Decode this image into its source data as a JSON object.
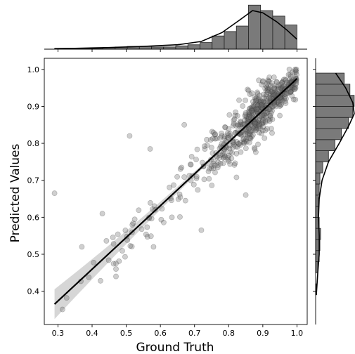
{
  "chart_data": {
    "type": "scatter",
    "xlabel": "Ground Truth",
    "ylabel": "Predicted Values",
    "xlim": [
      0.26,
      1.03
    ],
    "ylim": [
      0.31,
      1.03
    ],
    "x_ticks": [
      "0.3",
      "0.4",
      "0.5",
      "0.6",
      "0.7",
      "0.8",
      "0.9",
      "1.0"
    ],
    "y_ticks": [
      "0.4",
      "0.5",
      "0.6",
      "0.7",
      "0.8",
      "0.9",
      "1.0"
    ],
    "regression_line": {
      "x": [
        0.29,
        1.0
      ],
      "y": [
        0.365,
        0.975
      ]
    },
    "confidence_band": true,
    "marginal_top": {
      "type": "histogram_kde",
      "bins": [
        0.29,
        0.3255,
        0.361,
        0.3965,
        0.432,
        0.4675,
        0.503,
        0.5385,
        0.574,
        0.6095,
        0.645,
        0.6805,
        0.716,
        0.7515,
        0.787,
        0.8225,
        0.858,
        0.8935,
        0.929,
        0.9645,
        1.0
      ],
      "counts": [
        1,
        0,
        1,
        1,
        3,
        4,
        5,
        5,
        4,
        4,
        6,
        8,
        12,
        24,
        32,
        42,
        80,
        70,
        60,
        44
      ],
      "kde": [
        [
          0.29,
          1
        ],
        [
          0.35,
          1.5
        ],
        [
          0.45,
          3
        ],
        [
          0.55,
          5
        ],
        [
          0.65,
          8
        ],
        [
          0.72,
          14
        ],
        [
          0.78,
          30
        ],
        [
          0.83,
          52
        ],
        [
          0.87,
          70
        ],
        [
          0.9,
          66
        ],
        [
          0.94,
          50
        ],
        [
          0.97,
          35
        ],
        [
          1.0,
          18
        ]
      ]
    },
    "marginal_right": {
      "type": "histogram_kde",
      "bins": [
        0.39,
        0.42,
        0.45,
        0.48,
        0.51,
        0.54,
        0.57,
        0.6,
        0.63,
        0.66,
        0.69,
        0.72,
        0.75,
        0.78,
        0.81,
        0.84,
        0.87,
        0.9,
        0.93,
        0.96,
        0.99
      ],
      "counts": [
        1,
        0,
        3,
        5,
        6,
        7,
        5,
        4,
        4,
        5,
        6,
        10,
        18,
        27,
        36,
        46,
        52,
        54,
        48,
        40
      ],
      "kde": [
        [
          0.39,
          1
        ],
        [
          0.45,
          3
        ],
        [
          0.5,
          5
        ],
        [
          0.55,
          5
        ],
        [
          0.6,
          4
        ],
        [
          0.65,
          5
        ],
        [
          0.7,
          9
        ],
        [
          0.75,
          18
        ],
        [
          0.8,
          33
        ],
        [
          0.85,
          47
        ],
        [
          0.88,
          54
        ],
        [
          0.91,
          52
        ],
        [
          0.95,
          42
        ],
        [
          0.99,
          28
        ]
      ]
    }
  }
}
